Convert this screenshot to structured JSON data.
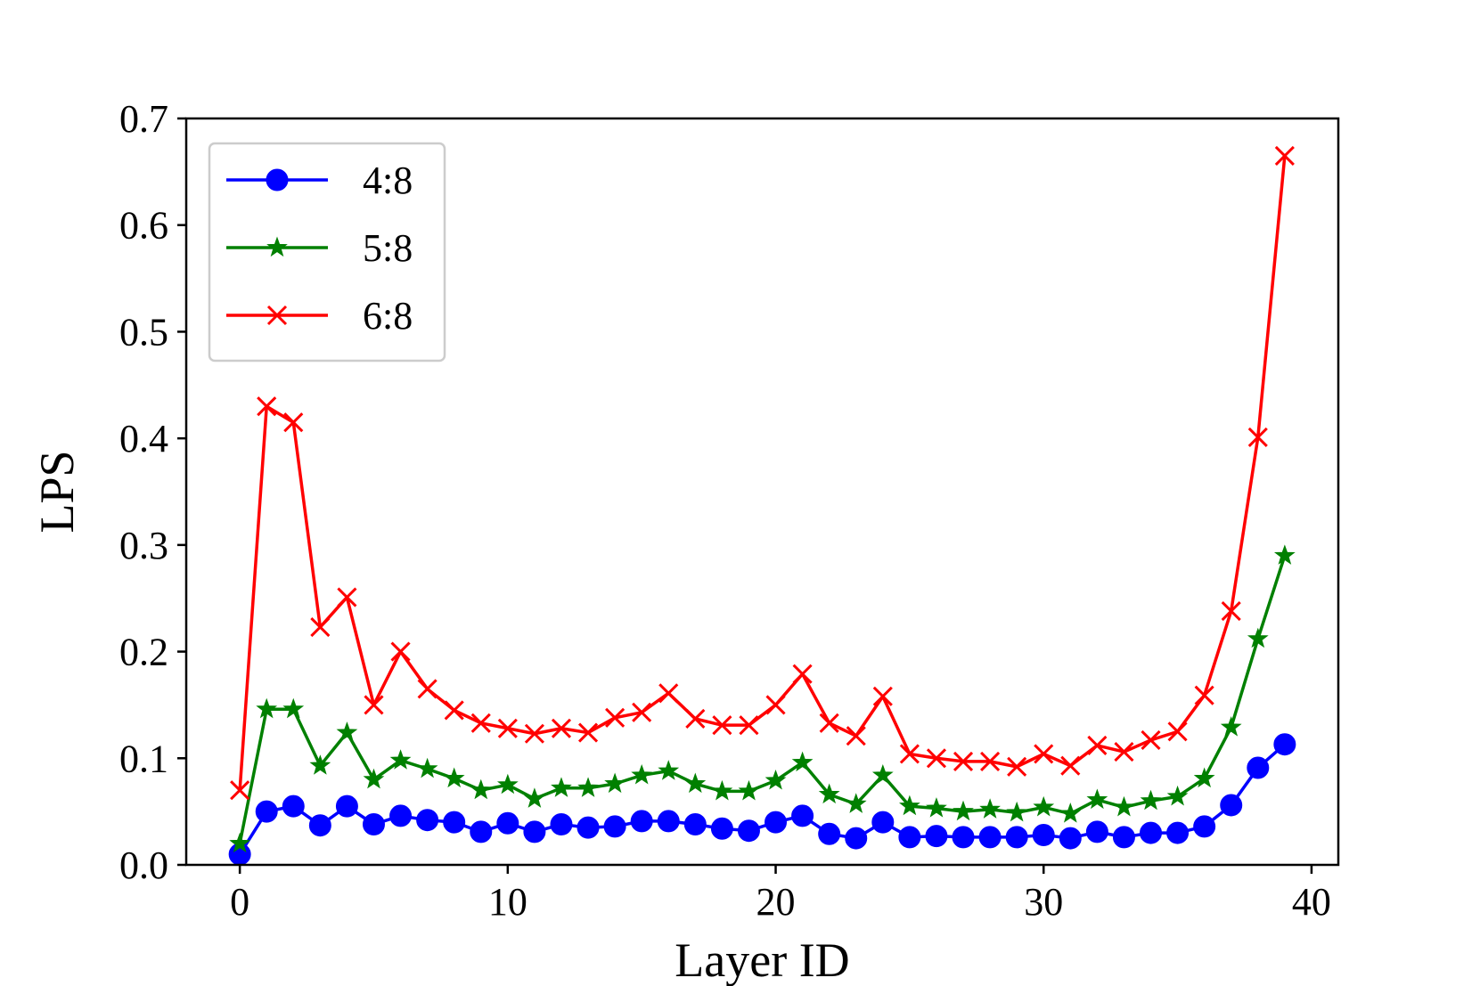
{
  "chart_data": {
    "type": "line",
    "xlabel": "Layer ID",
    "ylabel": "LPS",
    "xlim": [
      -2,
      41
    ],
    "ylim": [
      0,
      0.7
    ],
    "xticks": [
      0,
      10,
      20,
      30,
      40
    ],
    "xtick_labels": [
      "0",
      "10",
      "20",
      "30",
      "40"
    ],
    "yticks": [
      0.0,
      0.1,
      0.2,
      0.3,
      0.4,
      0.5,
      0.6,
      0.7
    ],
    "ytick_labels": [
      "0.0",
      "0.1",
      "0.2",
      "0.3",
      "0.4",
      "0.5",
      "0.6",
      "0.7"
    ],
    "grid": false,
    "legend_position": "top-left",
    "x": [
      0,
      1,
      2,
      3,
      4,
      5,
      6,
      7,
      8,
      9,
      10,
      11,
      12,
      13,
      14,
      15,
      16,
      17,
      18,
      19,
      20,
      21,
      22,
      23,
      24,
      25,
      26,
      27,
      28,
      29,
      30,
      31,
      32,
      33,
      34,
      35,
      36,
      37,
      38,
      39
    ],
    "series": [
      {
        "name": "4:8",
        "color": "#0000ff",
        "marker": "circle",
        "values": [
          0.01,
          0.05,
          0.055,
          0.037,
          0.055,
          0.038,
          0.046,
          0.042,
          0.04,
          0.031,
          0.039,
          0.031,
          0.038,
          0.035,
          0.036,
          0.041,
          0.041,
          0.038,
          0.034,
          0.032,
          0.04,
          0.046,
          0.029,
          0.025,
          0.04,
          0.026,
          0.027,
          0.026,
          0.026,
          0.026,
          0.028,
          0.025,
          0.031,
          0.026,
          0.03,
          0.03,
          0.036,
          0.056,
          0.091,
          0.113
        ]
      },
      {
        "name": "5:8",
        "color": "#008000",
        "marker": "star",
        "values": [
          0.02,
          0.146,
          0.146,
          0.093,
          0.124,
          0.08,
          0.098,
          0.09,
          0.081,
          0.07,
          0.075,
          0.062,
          0.072,
          0.072,
          0.076,
          0.084,
          0.088,
          0.076,
          0.069,
          0.069,
          0.079,
          0.096,
          0.066,
          0.057,
          0.084,
          0.055,
          0.053,
          0.05,
          0.052,
          0.049,
          0.054,
          0.048,
          0.061,
          0.054,
          0.06,
          0.064,
          0.081,
          0.129,
          0.212,
          0.29
        ]
      },
      {
        "name": "6:8",
        "color": "#ff0000",
        "marker": "x",
        "values": [
          0.07,
          0.43,
          0.415,
          0.223,
          0.251,
          0.15,
          0.2,
          0.165,
          0.145,
          0.133,
          0.128,
          0.123,
          0.128,
          0.124,
          0.138,
          0.143,
          0.161,
          0.137,
          0.131,
          0.131,
          0.15,
          0.179,
          0.133,
          0.121,
          0.158,
          0.104,
          0.1,
          0.097,
          0.097,
          0.092,
          0.104,
          0.093,
          0.112,
          0.106,
          0.117,
          0.125,
          0.159,
          0.238,
          0.401,
          0.665
        ]
      }
    ]
  }
}
